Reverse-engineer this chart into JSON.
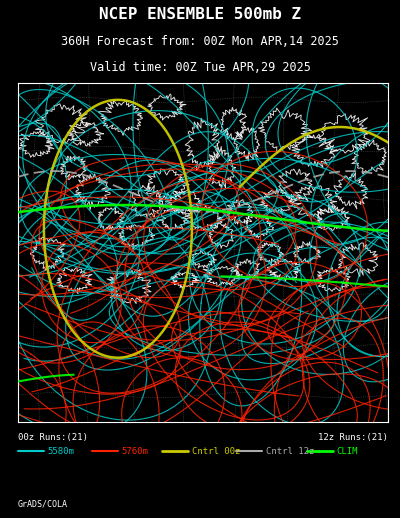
{
  "title_line1": "NCEP ENSEMBLE 500mb Z",
  "title_line2": "360H Forecast from: 00Z Mon APR,14 2025",
  "title_line3": "Valid time: 00Z Tue APR,29 2025",
  "bg_color": "#000000",
  "map_border_color": "#ffffff",
  "title_color": "#ffffff",
  "legend_left_text": "00z Runs:(21)",
  "legend_right_text": "12z Runs:(21)",
  "legend_colors": [
    "#00cccc",
    "#ff2200",
    "#cccc00",
    "#aaaaaa",
    "#00ff00"
  ],
  "legend_labels": [
    "5580m",
    "5760m",
    "Cntrl 00z",
    "Cntrl 12z",
    "CLIM"
  ],
  "legend_lws": [
    1.5,
    1.5,
    2.0,
    1.5,
    2.0
  ],
  "grads_text": "GrADS/COLA",
  "cyan_color": "#00cccc",
  "red_color": "#ff2200",
  "yellow_color": "#cccc00",
  "gray_color": "#aaaaaa",
  "green_color": "#00ff00",
  "white_color": "#ffffff",
  "dot_gray": "#888888"
}
